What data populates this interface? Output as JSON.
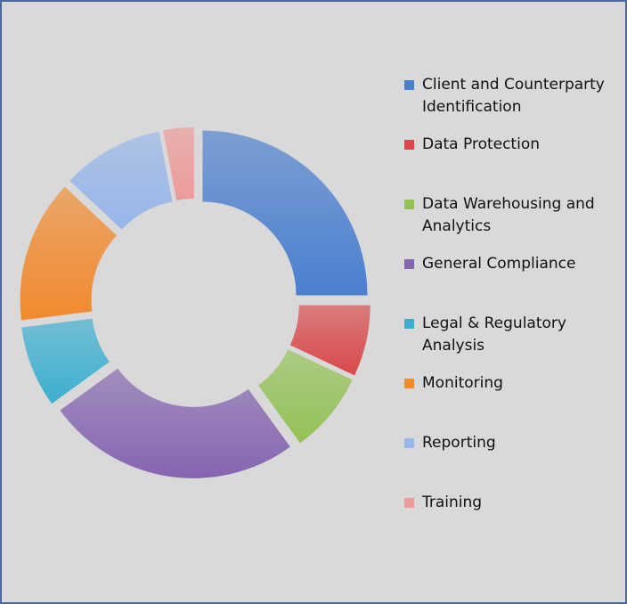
{
  "chart_data": {
    "type": "donut",
    "categories": [
      "Client and Counterparty Identification",
      "Data Protection",
      "Data Warehousing and Analytics",
      "General Compliance",
      "Legal & Regulatory Analysis",
      "Monitoring",
      "Reporting",
      "Training"
    ],
    "values": [
      25,
      7,
      8,
      25,
      8,
      14,
      10,
      3
    ],
    "colors": [
      "#4a7fcf",
      "#d9494a",
      "#94c256",
      "#8565b0",
      "#3cafd0",
      "#f28a2e",
      "#97b6ea",
      "#ef9a9a"
    ],
    "legend": "right"
  }
}
